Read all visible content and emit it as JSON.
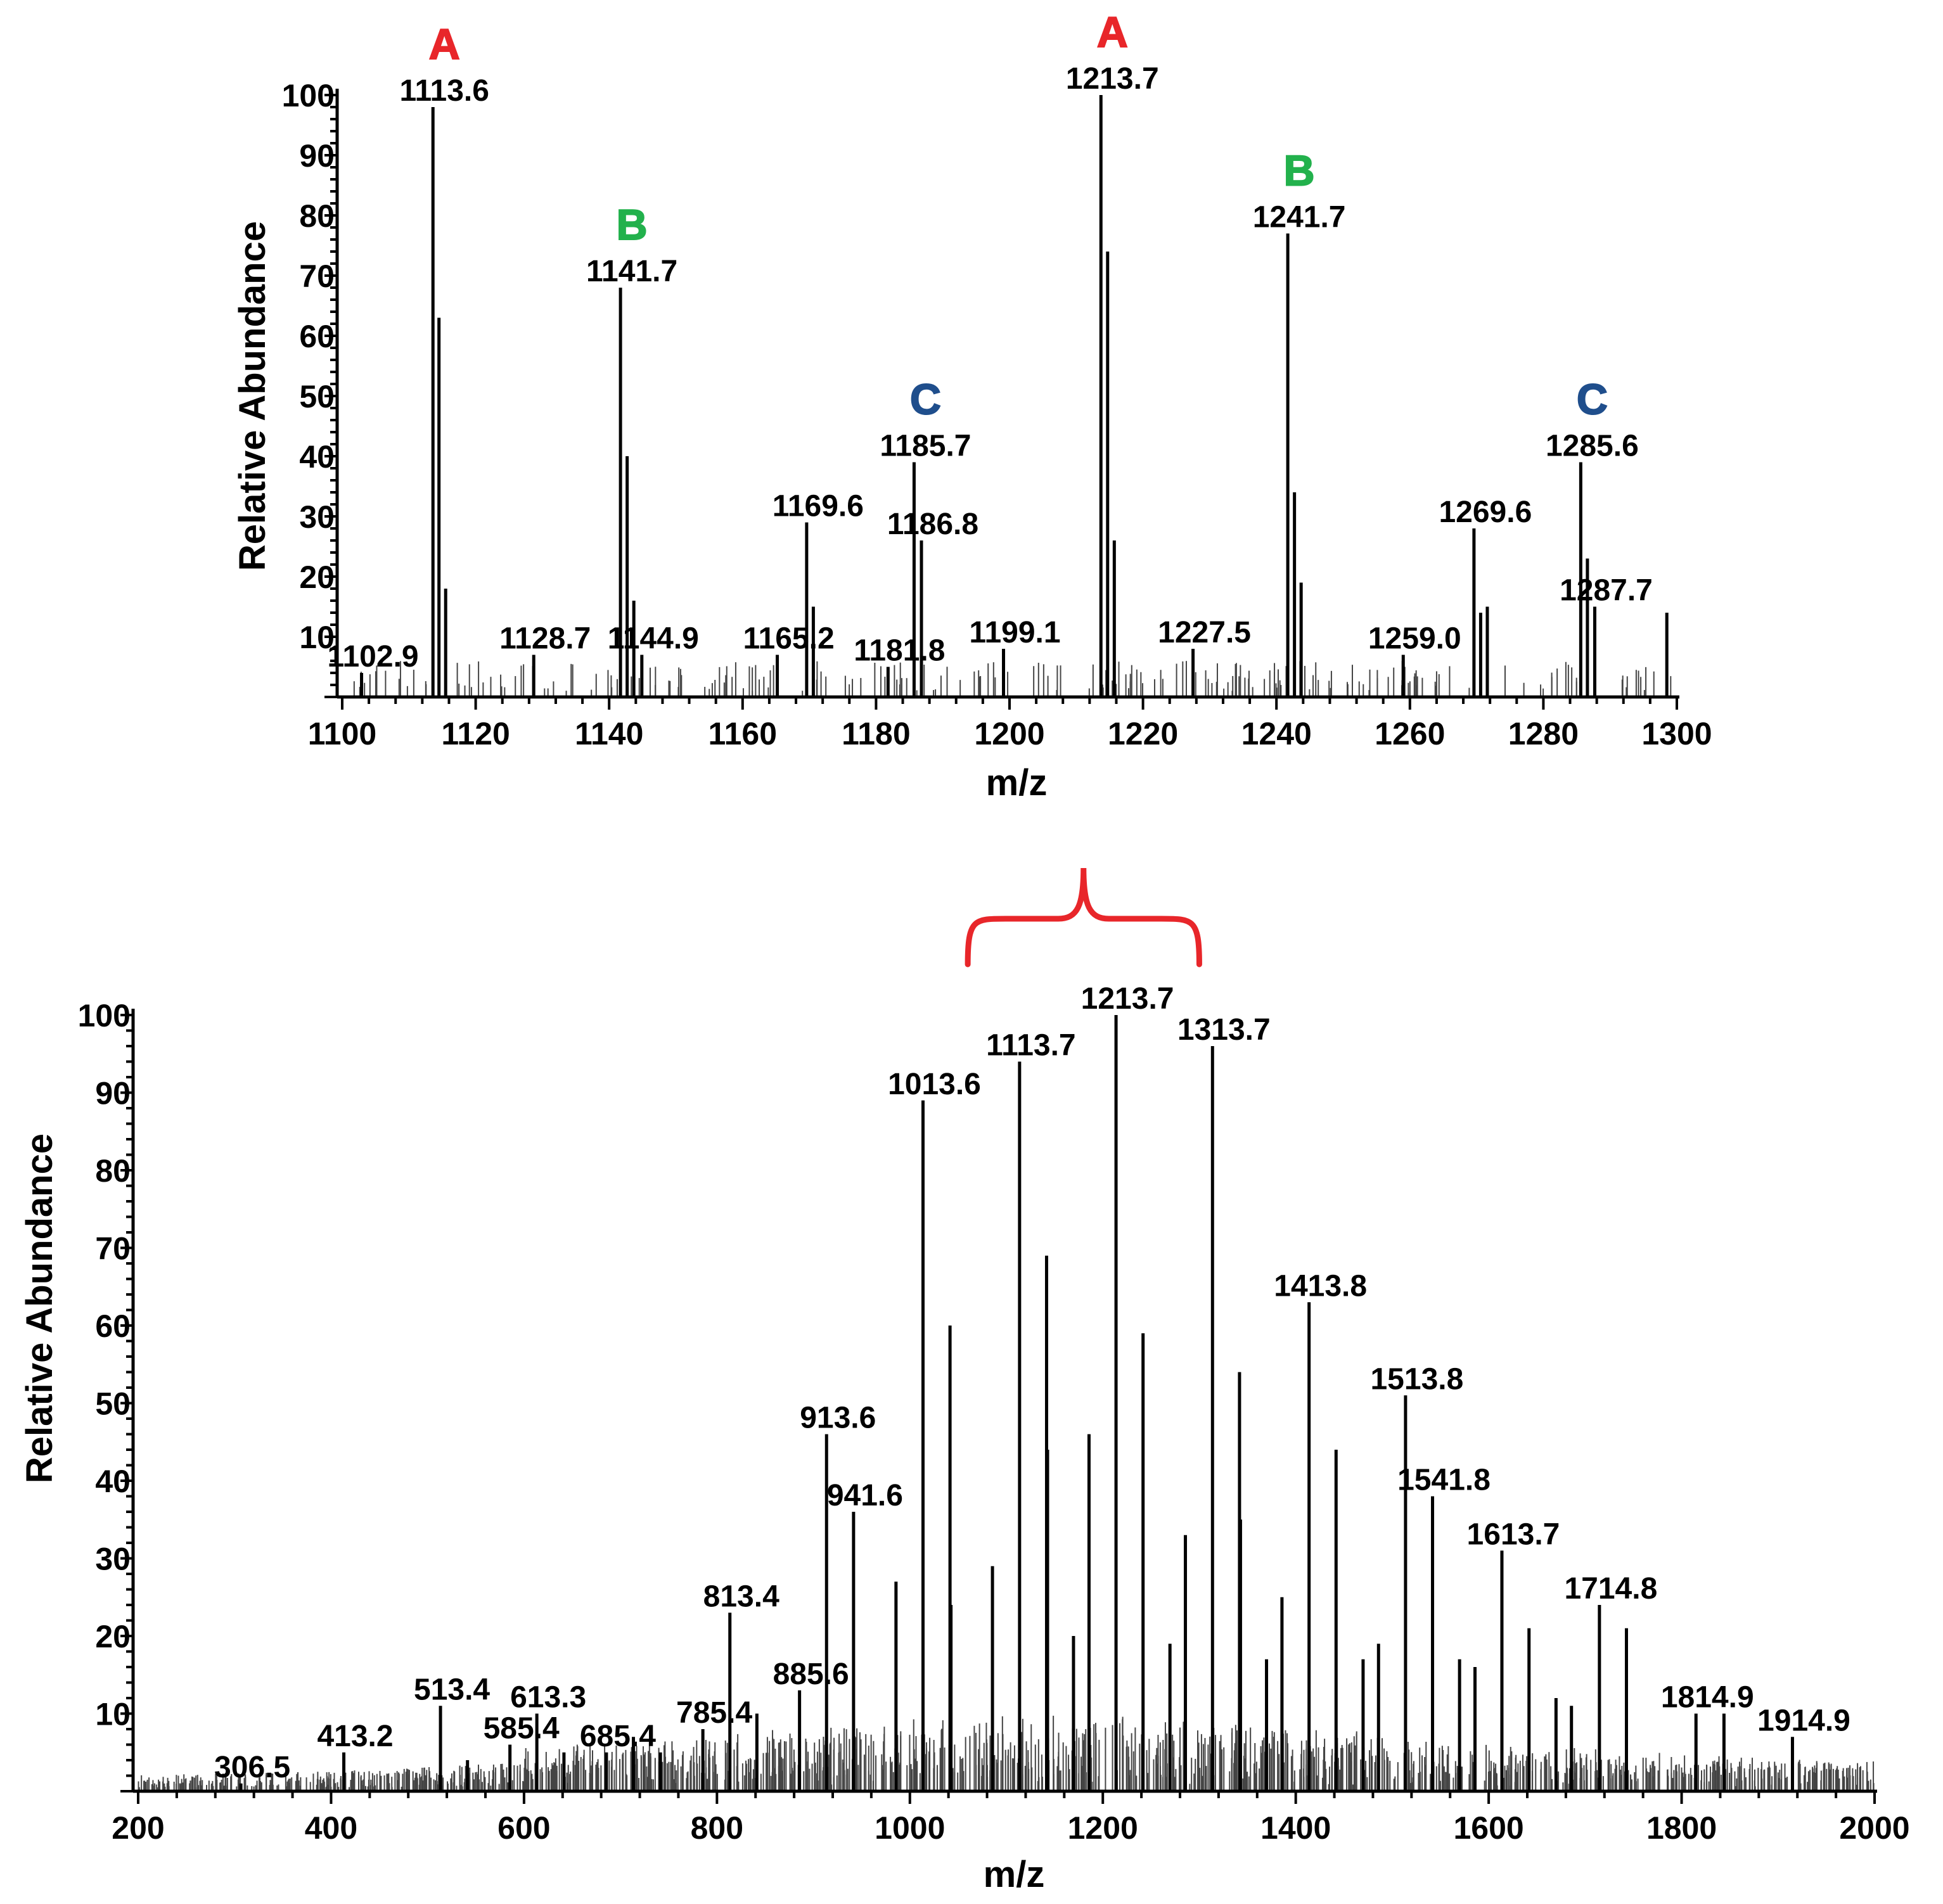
{
  "colors": {
    "A": "#e8262a",
    "B": "#22b14c",
    "C": "#1f4e8c",
    "bracket": "#e8262a",
    "axis": "#000000"
  },
  "chart_data": [
    {
      "type": "bar",
      "title": "",
      "xlabel": "m/z",
      "ylabel": "Relative Abundance",
      "xlim": [
        1100,
        1300
      ],
      "ylim": [
        0,
        100
      ],
      "xticks": [
        "1100",
        "1120",
        "1140",
        "1160",
        "1180",
        "1200",
        "1220",
        "1240",
        "1260",
        "1280",
        "1300"
      ],
      "yticks": [
        "10",
        "20",
        "30",
        "40",
        "50",
        "60",
        "70",
        "80",
        "90",
        "100"
      ],
      "peaks": [
        {
          "mz": 1113.6,
          "y": 98,
          "label": "1113.6",
          "annotation": "A",
          "annotation_color": "A"
        },
        {
          "mz": 1114.5,
          "y": 63
        },
        {
          "mz": 1115.5,
          "y": 18
        },
        {
          "mz": 1141.7,
          "y": 68,
          "label": "1141.7",
          "annotation": "B",
          "annotation_color": "B"
        },
        {
          "mz": 1142.7,
          "y": 40
        },
        {
          "mz": 1143.7,
          "y": 16
        },
        {
          "mz": 1169.6,
          "y": 29,
          "label": "1169.6"
        },
        {
          "mz": 1170.6,
          "y": 15
        },
        {
          "mz": 1185.7,
          "y": 39,
          "label": "1185.7",
          "annotation": "C",
          "annotation_color": "C"
        },
        {
          "mz": 1186.8,
          "y": 26,
          "label": "1186.8"
        },
        {
          "mz": 1213.7,
          "y": 100,
          "label": "1213.7",
          "annotation": "A",
          "annotation_color": "A"
        },
        {
          "mz": 1214.7,
          "y": 74
        },
        {
          "mz": 1215.7,
          "y": 26
        },
        {
          "mz": 1241.7,
          "y": 77,
          "label": "1241.7",
          "annotation": "B",
          "annotation_color": "B"
        },
        {
          "mz": 1242.7,
          "y": 34
        },
        {
          "mz": 1243.7,
          "y": 19
        },
        {
          "mz": 1269.6,
          "y": 28,
          "label": "1269.6"
        },
        {
          "mz": 1270.6,
          "y": 14
        },
        {
          "mz": 1271.6,
          "y": 15
        },
        {
          "mz": 1285.6,
          "y": 39,
          "label": "1285.6",
          "annotation": "C",
          "annotation_color": "C"
        },
        {
          "mz": 1286.6,
          "y": 23
        },
        {
          "mz": 1287.7,
          "y": 15,
          "label": "1287.7"
        },
        {
          "mz": 1298.5,
          "y": 14
        },
        {
          "mz": 1102.9,
          "y": 4,
          "label": "1102.9"
        },
        {
          "mz": 1128.7,
          "y": 7,
          "label": "1128.7"
        },
        {
          "mz": 1144.9,
          "y": 7,
          "label": "1144.9"
        },
        {
          "mz": 1165.2,
          "y": 7,
          "label": "1165.2"
        },
        {
          "mz": 1181.8,
          "y": 5,
          "label": "1181.8"
        },
        {
          "mz": 1199.1,
          "y": 8,
          "label": "1199.1"
        },
        {
          "mz": 1227.5,
          "y": 8,
          "label": "1227.5"
        },
        {
          "mz": 1259.0,
          "y": 7,
          "label": "1259.0"
        }
      ]
    },
    {
      "type": "bar",
      "title": "",
      "xlabel": "m/z",
      "ylabel": "Relative Abundance",
      "xlim": [
        200,
        2000
      ],
      "ylim": [
        0,
        100
      ],
      "xticks": [
        "200",
        "400",
        "600",
        "800",
        "1000",
        "1200",
        "1400",
        "1600",
        "1800",
        "2000"
      ],
      "yticks": [
        "10",
        "20",
        "30",
        "40",
        "50",
        "60",
        "70",
        "80",
        "90",
        "100"
      ],
      "bracket_range": [
        1060,
        1300
      ],
      "peaks": [
        {
          "mz": 1213.7,
          "y": 100,
          "label": "1213.7"
        },
        {
          "mz": 1313.7,
          "y": 96,
          "label": "1313.7"
        },
        {
          "mz": 1113.7,
          "y": 94,
          "label": "1113.7"
        },
        {
          "mz": 1013.6,
          "y": 89,
          "label": "1013.6"
        },
        {
          "mz": 1413.8,
          "y": 63,
          "label": "1413.8"
        },
        {
          "mz": 1513.8,
          "y": 51,
          "label": "1513.8"
        },
        {
          "mz": 913.6,
          "y": 46,
          "label": "913.6"
        },
        {
          "mz": 1541.8,
          "y": 38,
          "label": "1541.8"
        },
        {
          "mz": 941.6,
          "y": 36,
          "label": "941.6"
        },
        {
          "mz": 1613.7,
          "y": 31,
          "label": "1613.7"
        },
        {
          "mz": 1714.8,
          "y": 24,
          "label": "1714.8"
        },
        {
          "mz": 813.4,
          "y": 23,
          "label": "813.4"
        },
        {
          "mz": 885.6,
          "y": 13,
          "label": "885.6"
        },
        {
          "mz": 513.4,
          "y": 11,
          "label": "513.4"
        },
        {
          "mz": 613.3,
          "y": 10,
          "label": "613.3"
        },
        {
          "mz": 1814.9,
          "y": 10,
          "label": "1814.9"
        },
        {
          "mz": 1914.9,
          "y": 7,
          "label": "1914.9"
        },
        {
          "mz": 785.4,
          "y": 8,
          "label": "785.4"
        },
        {
          "mz": 585.4,
          "y": 6,
          "label": "585.4"
        },
        {
          "mz": 685.4,
          "y": 5,
          "label": "685.4"
        },
        {
          "mz": 413.2,
          "y": 5,
          "label": "413.2"
        },
        {
          "mz": 306.5,
          "y": 1,
          "label": "306.5"
        },
        {
          "mz": 1041.6,
          "y": 60
        },
        {
          "mz": 1141.7,
          "y": 69
        },
        {
          "mz": 1142.7,
          "y": 44
        },
        {
          "mz": 1241.7,
          "y": 59
        },
        {
          "mz": 1341.7,
          "y": 54
        },
        {
          "mz": 1342.7,
          "y": 35
        },
        {
          "mz": 1441.8,
          "y": 44
        },
        {
          "mz": 1185.7,
          "y": 46
        },
        {
          "mz": 1285.6,
          "y": 33
        },
        {
          "mz": 1085.6,
          "y": 29
        },
        {
          "mz": 985.6,
          "y": 27
        },
        {
          "mz": 1042.6,
          "y": 24
        },
        {
          "mz": 1169.6,
          "y": 20
        },
        {
          "mz": 1269.6,
          "y": 19
        },
        {
          "mz": 1385.7,
          "y": 25
        },
        {
          "mz": 1369.7,
          "y": 17
        },
        {
          "mz": 1485.8,
          "y": 19
        },
        {
          "mz": 1469.8,
          "y": 17
        },
        {
          "mz": 1569.8,
          "y": 17
        },
        {
          "mz": 1585.8,
          "y": 16
        },
        {
          "mz": 1641.8,
          "y": 21
        },
        {
          "mz": 1742.8,
          "y": 21
        },
        {
          "mz": 1669.8,
          "y": 12
        },
        {
          "mz": 1685.8,
          "y": 11
        },
        {
          "mz": 1843.9,
          "y": 10
        },
        {
          "mz": 841.4,
          "y": 10
        },
        {
          "mz": 741.4,
          "y": 5
        },
        {
          "mz": 713.4,
          "y": 7
        },
        {
          "mz": 641.4,
          "y": 5
        },
        {
          "mz": 541.4,
          "y": 4
        }
      ]
    }
  ]
}
